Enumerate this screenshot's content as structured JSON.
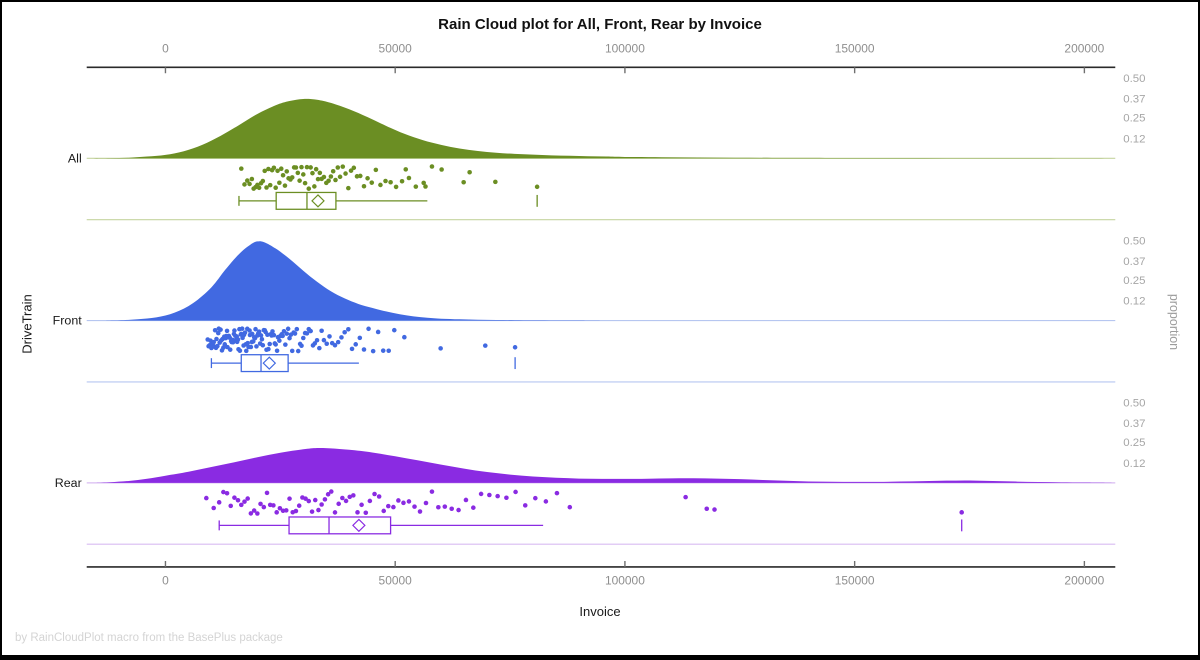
{
  "title": "Rain Cloud plot for All, Front, Rear by Invoice",
  "footnote": "by RainCloudPlot macro from the BasePlus package",
  "axes": {
    "x_label": "Invoice",
    "y_left_label": "DriveTrain",
    "y_right_label": "proportion",
    "x_tick_labels": [
      "0",
      "50000",
      "100000",
      "150000",
      "200000"
    ],
    "x_tick_values": [
      0,
      50000,
      100000,
      150000,
      200000
    ],
    "proportion_tick_labels": [
      "0.50",
      "0.37",
      "0.25",
      "0.12"
    ],
    "proportion_tick_values": [
      0.5,
      0.37,
      0.25,
      0.12
    ]
  },
  "colors": {
    "axis_line": "#2a2a2a",
    "tick_mark": "#6f6f6f",
    "tick_text": "#8f8f8f",
    "proportion_text": "#a6a6a6",
    "label_text": "#1a1a1a",
    "footnote_text": "#d4d4d4"
  },
  "chart_data": {
    "type": "raincloud",
    "title": "Rain Cloud plot for All, Front, Rear by Invoice",
    "xlabel": "Invoice",
    "ylabel": "DriveTrain",
    "y2label": "proportion",
    "xlim": [
      -17000,
      207000
    ],
    "proportion_gridlines": [
      0.12,
      0.25,
      0.37,
      0.5
    ],
    "legend": "none",
    "groups": [
      {
        "label": "All",
        "color": "#6b8e23",
        "light_color": "#c6d4a0",
        "density": [
          [
            -16000,
            0
          ],
          [
            -12000,
            0.001
          ],
          [
            -8000,
            0.004
          ],
          [
            -4000,
            0.011
          ],
          [
            0,
            0.022
          ],
          [
            4000,
            0.045
          ],
          [
            8000,
            0.085
          ],
          [
            12000,
            0.142
          ],
          [
            16000,
            0.21
          ],
          [
            20000,
            0.28
          ],
          [
            24000,
            0.335
          ],
          [
            27000,
            0.362
          ],
          [
            30000,
            0.375
          ],
          [
            33000,
            0.37
          ],
          [
            36000,
            0.35
          ],
          [
            40000,
            0.31
          ],
          [
            44000,
            0.26
          ],
          [
            48000,
            0.205
          ],
          [
            52000,
            0.155
          ],
          [
            56000,
            0.115
          ],
          [
            60000,
            0.085
          ],
          [
            64000,
            0.062
          ],
          [
            68000,
            0.046
          ],
          [
            72000,
            0.035
          ],
          [
            76000,
            0.028
          ],
          [
            80000,
            0.023
          ],
          [
            84000,
            0.019
          ],
          [
            88000,
            0.016
          ],
          [
            92000,
            0.013
          ],
          [
            96000,
            0.011
          ],
          [
            100000,
            0.009
          ],
          [
            108000,
            0.007
          ],
          [
            116000,
            0.005
          ],
          [
            124000,
            0.004
          ],
          [
            132000,
            0.003
          ],
          [
            140000,
            0.003
          ],
          [
            150000,
            0.002
          ],
          [
            160000,
            0.002
          ],
          [
            170000,
            0.001
          ],
          [
            180000,
            0.001
          ],
          [
            190000,
            0.001
          ],
          [
            200000,
            0.0005
          ],
          [
            206000,
            0
          ]
        ],
        "points": [
          16500,
          17200,
          17800,
          18300,
          18800,
          19200,
          19600,
          20000,
          20400,
          20800,
          21200,
          21600,
          22000,
          22400,
          22800,
          23200,
          23600,
          24000,
          24400,
          24800,
          25200,
          25600,
          26000,
          26400,
          26800,
          27200,
          27600,
          28000,
          28400,
          28800,
          29200,
          29600,
          30000,
          30400,
          30800,
          31200,
          31600,
          32000,
          32400,
          32800,
          33200,
          33600,
          34000,
          34500,
          35000,
          35500,
          36000,
          36500,
          37000,
          37500,
          38000,
          38600,
          39200,
          39800,
          40400,
          41000,
          41700,
          42400,
          43200,
          44000,
          44900,
          45800,
          46800,
          47900,
          49000,
          50200,
          51500,
          52300,
          53000,
          54500,
          56200,
          56600,
          58000,
          60100,
          64900,
          66200,
          71800,
          80900
        ],
        "box": {
          "whisker_low": 16000,
          "q1": 24100,
          "median": 30800,
          "q3": 37100,
          "whisker_high": 57000,
          "mean": 33200,
          "outliers": [
            80900
          ]
        }
      },
      {
        "label": "Front",
        "color": "#4169e1",
        "light_color": "#b6c6f0",
        "density": [
          [
            -13000,
            0
          ],
          [
            -10000,
            0.002
          ],
          [
            -6000,
            0.008
          ],
          [
            -2000,
            0.02
          ],
          [
            2000,
            0.05
          ],
          [
            6000,
            0.11
          ],
          [
            10000,
            0.21
          ],
          [
            13000,
            0.32
          ],
          [
            16000,
            0.42
          ],
          [
            18500,
            0.48
          ],
          [
            20000,
            0.5
          ],
          [
            21500,
            0.495
          ],
          [
            24000,
            0.455
          ],
          [
            27000,
            0.39
          ],
          [
            30000,
            0.315
          ],
          [
            33000,
            0.245
          ],
          [
            36000,
            0.185
          ],
          [
            39000,
            0.14
          ],
          [
            42000,
            0.105
          ],
          [
            45000,
            0.08
          ],
          [
            48000,
            0.058
          ],
          [
            51000,
            0.04
          ],
          [
            54000,
            0.027
          ],
          [
            57000,
            0.018
          ],
          [
            60000,
            0.012
          ],
          [
            64000,
            0.008
          ],
          [
            68000,
            0.005
          ],
          [
            72000,
            0.004
          ],
          [
            76000,
            0.003
          ],
          [
            80000,
            0.002
          ],
          [
            85000,
            0.001
          ],
          [
            90000,
            0.001
          ],
          [
            95000,
            0
          ]
        ],
        "points": [
          9200,
          9400,
          9600,
          9800,
          10000,
          10100,
          10300,
          10500,
          10600,
          10800,
          11000,
          11100,
          11300,
          11500,
          11600,
          11800,
          12000,
          12100,
          12300,
          12400,
          12600,
          12800,
          12900,
          13100,
          13200,
          13400,
          13500,
          13700,
          13800,
          14000,
          14100,
          14300,
          14400,
          14600,
          14700,
          14900,
          15000,
          15200,
          15300,
          15500,
          15600,
          15800,
          15900,
          16100,
          16200,
          16400,
          16500,
          16700,
          16800,
          17000,
          17100,
          17300,
          17500,
          17600,
          17800,
          17900,
          18100,
          18300,
          18400,
          18600,
          18800,
          18900,
          19100,
          19300,
          19500,
          19600,
          19800,
          20000,
          20200,
          20400,
          20600,
          20800,
          21000,
          21200,
          21400,
          21600,
          21800,
          22000,
          22200,
          22400,
          22700,
          22900,
          23100,
          23300,
          23600,
          23800,
          24000,
          24300,
          24500,
          24800,
          25000,
          25300,
          25500,
          25800,
          26100,
          26400,
          26700,
          27000,
          27300,
          27600,
          27900,
          28200,
          28600,
          28900,
          29300,
          29600,
          30000,
          30400,
          30800,
          31200,
          31600,
          32100,
          32500,
          33000,
          33500,
          34000,
          34500,
          35100,
          35700,
          36300,
          36900,
          37600,
          38300,
          39000,
          39800,
          40600,
          41400,
          42300,
          43200,
          44200,
          45200,
          46300,
          47400,
          48600,
          49800,
          52000,
          59900,
          69600,
          76100
        ],
        "box": {
          "whisker_low": 10000,
          "q1": 16500,
          "median": 20800,
          "q3": 26700,
          "whisker_high": 42100,
          "mean": 22600,
          "outliers": [
            76100
          ]
        }
      },
      {
        "label": "Rear",
        "color": "#8a2be2",
        "light_color": "#d8bcf2",
        "density": [
          [
            -15000,
            0
          ],
          [
            -12000,
            0.004
          ],
          [
            -8000,
            0.012
          ],
          [
            -4000,
            0.026
          ],
          [
            0,
            0.045
          ],
          [
            5000,
            0.07
          ],
          [
            10000,
            0.1
          ],
          [
            15000,
            0.13
          ],
          [
            20000,
            0.162
          ],
          [
            25000,
            0.19
          ],
          [
            30000,
            0.212
          ],
          [
            33000,
            0.22
          ],
          [
            36000,
            0.218
          ],
          [
            40000,
            0.209
          ],
          [
            45000,
            0.192
          ],
          [
            50000,
            0.168
          ],
          [
            55000,
            0.142
          ],
          [
            60000,
            0.115
          ],
          [
            65000,
            0.09
          ],
          [
            70000,
            0.068
          ],
          [
            75000,
            0.052
          ],
          [
            80000,
            0.04
          ],
          [
            85000,
            0.032
          ],
          [
            90000,
            0.027
          ],
          [
            95000,
            0.025
          ],
          [
            100000,
            0.025
          ],
          [
            105000,
            0.026
          ],
          [
            110000,
            0.028
          ],
          [
            115000,
            0.029
          ],
          [
            120000,
            0.027
          ],
          [
            125000,
            0.023
          ],
          [
            130000,
            0.018
          ],
          [
            135000,
            0.013
          ],
          [
            140000,
            0.009
          ],
          [
            145000,
            0.007
          ],
          [
            150000,
            0.006
          ],
          [
            155000,
            0.006
          ],
          [
            160000,
            0.008
          ],
          [
            165000,
            0.011
          ],
          [
            170000,
            0.014
          ],
          [
            175000,
            0.015
          ],
          [
            180000,
            0.012
          ],
          [
            185000,
            0.008
          ],
          [
            190000,
            0.005
          ],
          [
            195000,
            0.003
          ],
          [
            200000,
            0.002
          ],
          [
            206000,
            0
          ]
        ],
        "points": [
          8900,
          10500,
          11700,
          12600,
          13400,
          14200,
          15000,
          15800,
          16500,
          17200,
          17900,
          18600,
          19300,
          20000,
          20700,
          21400,
          22100,
          22800,
          23500,
          24200,
          24900,
          25600,
          26300,
          27000,
          27700,
          28400,
          29100,
          29800,
          30500,
          31200,
          31900,
          32600,
          33300,
          34000,
          34700,
          35400,
          36100,
          36900,
          37700,
          38500,
          39300,
          40100,
          40900,
          41800,
          42700,
          43600,
          44500,
          45500,
          46500,
          47500,
          48500,
          49600,
          50700,
          51800,
          53000,
          54200,
          55400,
          56700,
          58000,
          59400,
          60800,
          62300,
          63800,
          65400,
          67000,
          68700,
          70500,
          72300,
          74200,
          76200,
          78300,
          80500,
          82800,
          85200,
          88000,
          113200,
          117800,
          119500,
          173300
        ],
        "box": {
          "whisker_low": 11700,
          "q1": 26900,
          "median": 35600,
          "q3": 49000,
          "whisker_high": 82200,
          "mean": 42100,
          "outliers": [
            173300
          ]
        }
      }
    ]
  }
}
